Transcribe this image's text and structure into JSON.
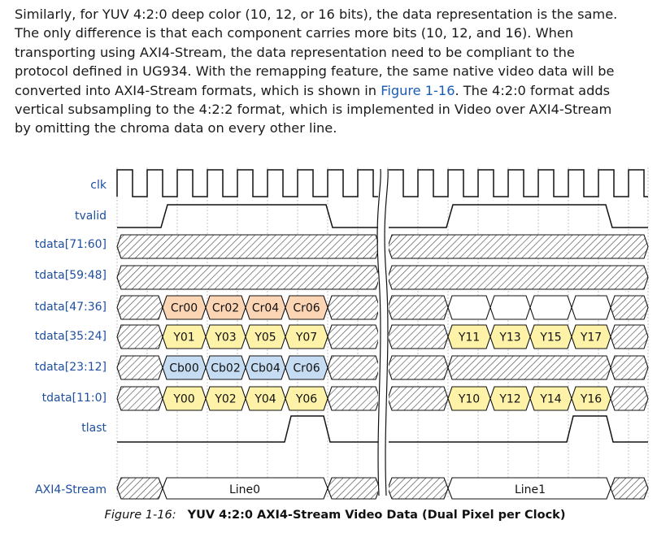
{
  "paragraph": {
    "lines": [
      "Similarly, for YUV 4:2:0 deep color (10, 12, or 16 bits), the data representation is the same.",
      "The only difference is that each component carries more bits (10, 12, and 16). When",
      "transporting using AXI4-Stream, the data representation need to be compliant to the",
      "protocol defined in UG934. With the remapping feature, the same native video data will be",
      "converted into AXI4-Stream formats, which is shown in ",
      "Figure 1-16",
      ". The 4:2:0 format adds",
      "vertical subsampling to the 4:2:2 format, which is implemented in Video over AXI4-Stream",
      "by omitting the chroma data on every other line."
    ]
  },
  "signals": {
    "clk": "clk",
    "tvalid": "tvalid",
    "d71": "tdata[71:60]",
    "d59": "tdata[59:48]",
    "d47": "tdata[47:36]",
    "d35": "tdata[35:24]",
    "d23": "tdata[23:12]",
    "d11": "tdata[11:0]",
    "tlast": "tlast",
    "axi": "AXI4-Stream"
  },
  "buses": {
    "d47": [
      "Cr00",
      "Cr02",
      "Cr04",
      "Cr06",
      "",
      "",
      "",
      ""
    ],
    "d35": [
      "Y01",
      "Y03",
      "Y05",
      "Y07",
      "Y11",
      "Y13",
      "Y15",
      "Y17"
    ],
    "d23": [
      "Cb00",
      "Cb02",
      "Cb04",
      "Cr06"
    ],
    "d11": [
      "Y00",
      "Y02",
      "Y04",
      "Y06",
      "Y10",
      "Y12",
      "Y14",
      "Y16"
    ]
  },
  "stream": {
    "line0": "Line0",
    "line1": "Line1"
  },
  "colors": {
    "cr": "#fcd5b4",
    "y": "#fdf2a8",
    "cb": "#c5dcf3",
    "signal_label": "#1f4fa0",
    "link": "#1a5bb5"
  },
  "caption": {
    "figure": "Figure 1-16:",
    "title": "YUV 4:2:0 AXI4-Stream Video Data (Dual Pixel per Clock)"
  }
}
